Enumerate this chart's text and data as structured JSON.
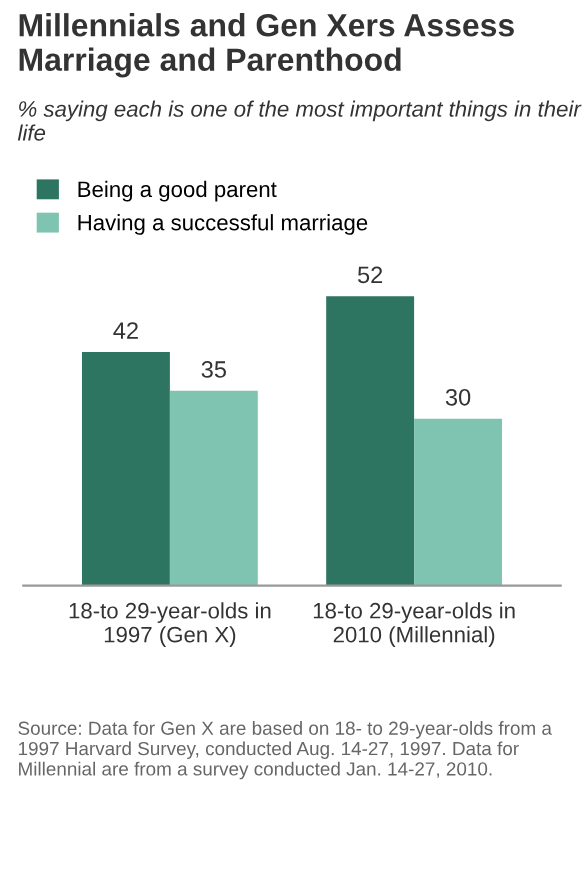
{
  "chart_data": {
    "type": "bar",
    "title": "Millennials and Gen Xers Assess Marriage and Parenthood",
    "subtitle": "% saying each is one of the most important things in their life",
    "categories": [
      "18-to 29-year-olds in\n1997 (Gen X)",
      "18-to 29-year-olds in\n2010 (Millennial)"
    ],
    "series": [
      {
        "name": "Being a good parent",
        "color": "#2e7561",
        "values": [
          42,
          52
        ]
      },
      {
        "name": "Having a successful marriage",
        "color": "#7fc3b1",
        "values": [
          35,
          30
        ]
      }
    ],
    "data_labels": true,
    "legend": "top left",
    "grid": false,
    "annotations": [
      "Source: Data for Gen X are based on 18- to 29-year-olds from a 1997 Harvard Survey, conducted Aug. 14-27, 1997. Data for Millennial are from a survey conducted Jan. 14-27, 2010."
    ]
  }
}
